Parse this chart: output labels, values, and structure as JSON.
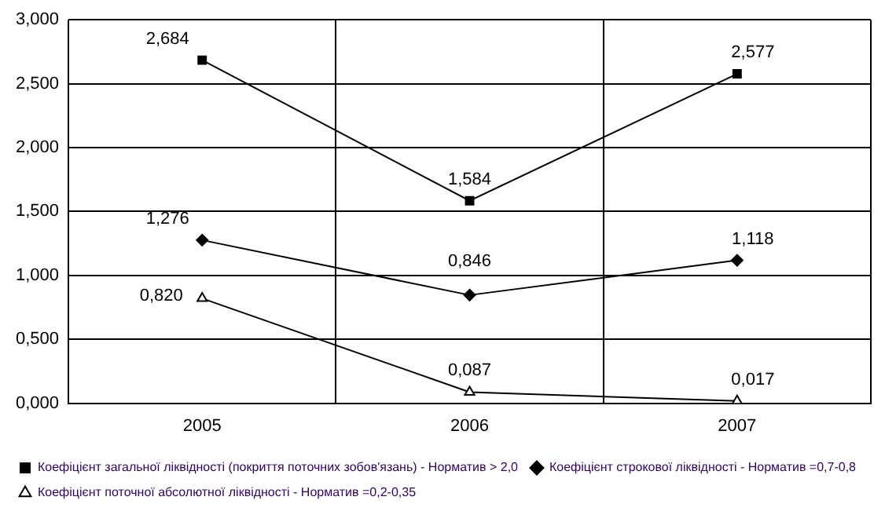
{
  "chart_data": {
    "type": "line",
    "categories": [
      "2005",
      "2006",
      "2007"
    ],
    "series": [
      {
        "name": "Коефіцієнт загальної ліквідності (покриття поточних зобов'язань) - Норматив > 2,0",
        "color": "#000000",
        "marker": "square",
        "values": [
          2.684,
          1.584,
          2.577
        ],
        "value_labels": [
          "2,684",
          "1,584",
          "2,577"
        ]
      },
      {
        "name": "Коефіцієнт строкової ліквідності - Норматив =0,7-0,8",
        "color": "#000000",
        "marker": "diamond",
        "values": [
          1.276,
          0.846,
          1.118
        ],
        "value_labels": [
          "1,276",
          "0,846",
          "1,118"
        ]
      },
      {
        "name": "Коефіцієнт поточної абсолютної ліквідності - Норматив =0,2-0,35",
        "color": "#000000",
        "marker": "triangle",
        "values": [
          0.82,
          0.087,
          0.017
        ],
        "value_labels": [
          "0,820",
          "0,087",
          "0,017"
        ]
      }
    ],
    "ylim": [
      0,
      3
    ],
    "yticks": [
      {
        "value": 0,
        "label": "0,000"
      },
      {
        "value": 0.5,
        "label": "0,500"
      },
      {
        "value": 1,
        "label": "1,000"
      },
      {
        "value": 1.5,
        "label": "1,500"
      },
      {
        "value": 2,
        "label": "2,000"
      },
      {
        "value": 2.5,
        "label": "2,500"
      },
      {
        "value": 3,
        "label": "3,000"
      }
    ],
    "grid": true,
    "legend": "bottom",
    "line_style": "solid"
  }
}
